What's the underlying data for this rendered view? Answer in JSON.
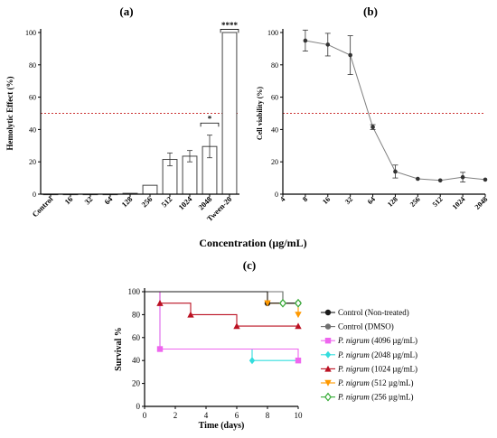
{
  "figure": {
    "panel_a_label": "(a)",
    "panel_b_label": "(b)",
    "panel_c_label": "(c)",
    "shared_xlabel": "Concentration (µg/mL)"
  },
  "colors": {
    "axis": "#000000",
    "bar_stroke": "#444444",
    "bar_fill": "#ffffff",
    "threshold_line": "#cc3333",
    "line_b": "#7f7f7f",
    "control_nt": "#1a1a1a",
    "control_dmso": "#707070",
    "c4096": "#ee66ee",
    "c2048": "#33dddd",
    "c1024": "#bb1122",
    "c512": "#ff9900",
    "c256": "#33aa33"
  },
  "chart_data": [
    {
      "type": "bar",
      "panel": "(a)",
      "ylabel": "Hemolytic Effect (%)",
      "categories": [
        "Control",
        "16",
        "32",
        "64",
        "128",
        "256",
        "512",
        "1024",
        "2048",
        "Tween-20"
      ],
      "values": [
        0,
        0,
        0,
        0,
        0.5,
        5.5,
        21.5,
        23.5,
        29.5,
        100
      ],
      "errors": [
        0,
        0,
        0,
        0,
        0,
        0,
        4,
        3.5,
        7,
        0
      ],
      "ylim": [
        0,
        100
      ],
      "yticks": [
        0,
        20,
        40,
        60,
        80,
        100
      ],
      "reference_line": 50,
      "significance": [
        {
          "from": "2048",
          "to": "2048",
          "label": "*",
          "y": 44
        },
        {
          "from": "Tween-20",
          "to": "Tween-20",
          "label": "****",
          "y": 102
        }
      ]
    },
    {
      "type": "line",
      "panel": "(b)",
      "ylabel": "Cell viability (%)",
      "scale": "log2",
      "xticks": [
        "4",
        "8",
        "16",
        "32",
        "64",
        "128",
        "256",
        "512",
        "1024",
        "2048"
      ],
      "x": [
        8,
        16,
        32,
        64,
        128,
        256,
        512,
        1024,
        2048
      ],
      "y": [
        95,
        92.5,
        86,
        41.5,
        14,
        9.5,
        8.5,
        10.5,
        9
      ],
      "errors": [
        6.5,
        7,
        12,
        1.5,
        4,
        0,
        0,
        3,
        0
      ],
      "xlim": [
        4,
        2048
      ],
      "ylim": [
        0,
        100
      ],
      "yticks": [
        0,
        20,
        40,
        60,
        80,
        100
      ],
      "reference_line": 50
    },
    {
      "type": "line",
      "panel": "(c)",
      "step": true,
      "xlabel": "Time (days)",
      "ylabel": "Survival %",
      "xlim": [
        0,
        10
      ],
      "ylim": [
        0,
        100
      ],
      "xticks": [
        0,
        2,
        4,
        6,
        8,
        10
      ],
      "yticks": [
        0,
        20,
        40,
        60,
        80,
        100
      ],
      "series": [
        {
          "name": "Control (Non-treated)",
          "name_prefix": "",
          "name_suffix": "Control (Non-treated)",
          "marker": "circle",
          "color_key": "control_nt",
          "x": [
            0,
            10
          ],
          "y": [
            100,
            90
          ],
          "steps": [
            [
              0,
              100
            ],
            [
              8,
              100
            ],
            [
              8,
              90
            ],
            [
              10,
              90
            ]
          ],
          "markers": [
            [
              8,
              90
            ],
            [
              10,
              90
            ]
          ]
        },
        {
          "name": "Control (DMSO)",
          "name_prefix": "",
          "name_suffix": "Control (DMSO)",
          "marker": "circle",
          "color_key": "control_dmso",
          "x": [
            0,
            9
          ],
          "y": [
            100,
            90
          ],
          "steps": [
            [
              0,
              100
            ],
            [
              9,
              100
            ],
            [
              9,
              90
            ],
            [
              10,
              90
            ]
          ],
          "markers": [
            [
              9,
              90
            ],
            [
              10,
              90
            ]
          ]
        },
        {
          "name": "P. nigrum (4096 µg/mL)",
          "name_prefix": "P. nigrum",
          "name_suffix": " (4096 µg/mL)",
          "marker": "square",
          "color_key": "c4096",
          "x": [
            1,
            10
          ],
          "y": [
            50,
            40
          ],
          "steps": [
            [
              0,
              100
            ],
            [
              1,
              100
            ],
            [
              1,
              50
            ],
            [
              10,
              50
            ],
            [
              10,
              40
            ]
          ],
          "markers": [
            [
              1,
              50
            ],
            [
              10,
              40
            ]
          ]
        },
        {
          "name": "P. nigrum (2048 µg/mL)",
          "name_prefix": "P. nigrum",
          "name_suffix": " (2048 µg/mL)",
          "marker": "diamond",
          "color_key": "c2048",
          "x": [
            7,
            10
          ],
          "y": [
            40,
            40
          ],
          "steps": [
            [
              0,
              100
            ],
            [
              1,
              100
            ],
            [
              1,
              50
            ],
            [
              7,
              50
            ],
            [
              7,
              40
            ],
            [
              10,
              40
            ]
          ],
          "markers": [
            [
              7,
              40
            ]
          ]
        },
        {
          "name": "P. nigrum (1024 µg/mL)",
          "name_prefix": "P. nigrum",
          "name_suffix": " (1024 µg/mL)",
          "marker": "triangle",
          "color_key": "c1024",
          "x": [
            1,
            3,
            6,
            10
          ],
          "y": [
            90,
            80,
            70,
            70
          ],
          "steps": [
            [
              0,
              100
            ],
            [
              1,
              100
            ],
            [
              1,
              90
            ],
            [
              3,
              90
            ],
            [
              3,
              80
            ],
            [
              6,
              80
            ],
            [
              6,
              70
            ],
            [
              10,
              70
            ]
          ],
          "markers": [
            [
              1,
              90
            ],
            [
              3,
              80
            ],
            [
              6,
              70
            ],
            [
              10,
              70
            ]
          ]
        },
        {
          "name": "P. nigrum (512 µg/mL)",
          "name_prefix": "P. nigrum",
          "name_suffix": " (512 µg/mL)",
          "marker": "triangle-down",
          "color_key": "c512",
          "x": [
            8,
            10
          ],
          "y": [
            90,
            80
          ],
          "steps": [
            [
              0,
              100
            ],
            [
              8,
              100
            ],
            [
              8,
              90
            ],
            [
              10,
              90
            ],
            [
              10,
              80
            ]
          ],
          "markers": [
            [
              8,
              90
            ],
            [
              10,
              80
            ]
          ]
        },
        {
          "name": "P. nigrum (256 µg/mL)",
          "name_prefix": "P. nigrum",
          "name_suffix": " (256 µg/mL)",
          "marker": "diamond-open",
          "color_key": "c256",
          "x": [
            9,
            10
          ],
          "y": [
            90,
            90
          ],
          "steps": [
            [
              0,
              100
            ],
            [
              9,
              100
            ],
            [
              9,
              90
            ],
            [
              10,
              90
            ]
          ],
          "markers": [
            [
              9,
              90
            ],
            [
              10,
              90
            ]
          ]
        }
      ]
    }
  ]
}
